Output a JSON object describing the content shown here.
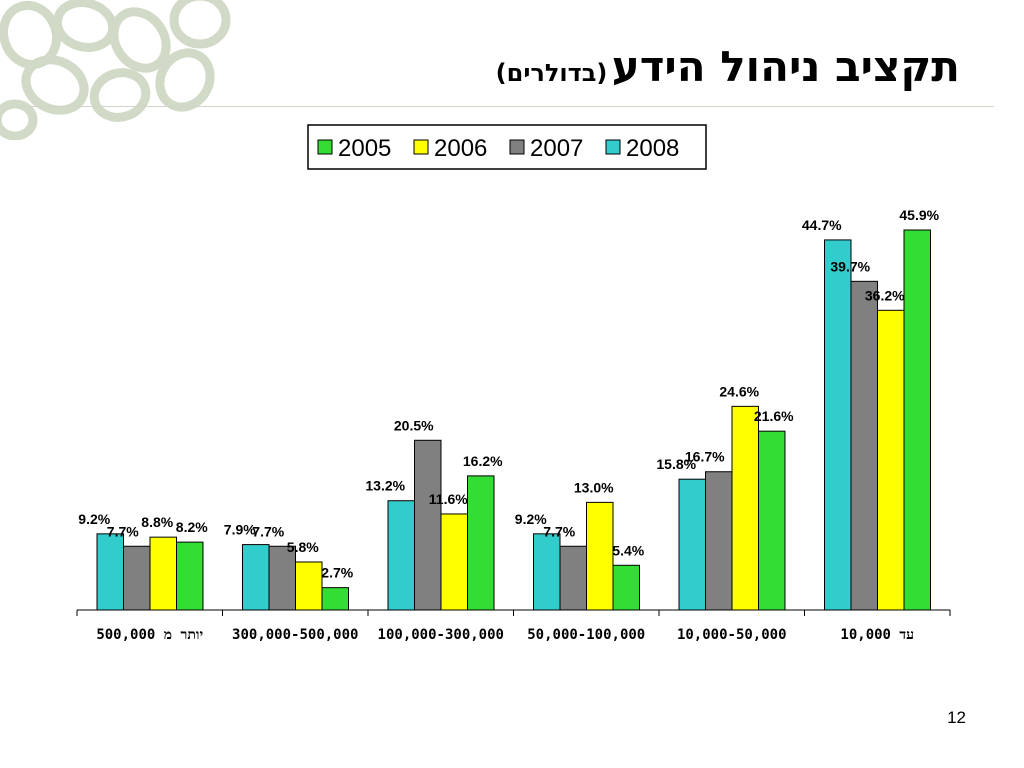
{
  "slide": {
    "title": "תקציב ניהול הידע",
    "subtitle": "(בדולרים)",
    "page_number": "12"
  },
  "colors": {
    "2005": "#33dd33",
    "2006": "#ffff00",
    "2007": "#808080",
    "2008": "#33cccc",
    "decoration": "#c9d4bd"
  },
  "chart_data": {
    "type": "bar",
    "categories": [
      "יותר מ 500,000",
      "300,000-500,000",
      "100,000-300,000",
      "50,000-100,000",
      "10,000-50,000",
      "עד 10,000"
    ],
    "series": [
      {
        "name": "2008",
        "values": [
          9.2,
          7.9,
          13.2,
          9.2,
          15.8,
          44.7
        ]
      },
      {
        "name": "2007",
        "values": [
          7.7,
          7.7,
          20.5,
          7.7,
          16.7,
          39.7
        ]
      },
      {
        "name": "2006",
        "values": [
          8.8,
          5.8,
          11.6,
          13.0,
          24.6,
          36.2
        ]
      },
      {
        "name": "2005",
        "values": [
          8.2,
          2.7,
          16.2,
          5.4,
          21.6,
          45.9
        ]
      }
    ],
    "legend_order": [
      "2005",
      "2006",
      "2007",
      "2008"
    ],
    "legend_position": "top-center",
    "ylim": [
      0,
      50
    ],
    "value_suffix": "%",
    "grid": false
  }
}
